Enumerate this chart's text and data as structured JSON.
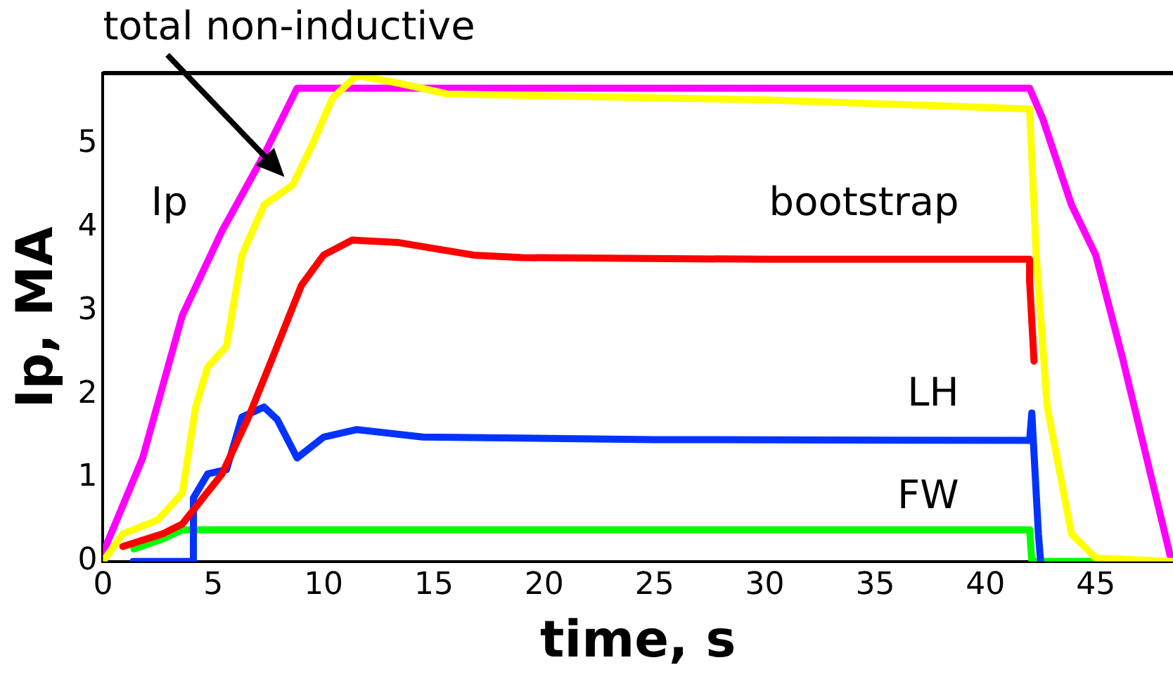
{
  "chart_data": {
    "type": "line",
    "xlabel": "time, s",
    "ylabel": "Ip, MA",
    "xlim": [
      0,
      48.5
    ],
    "ylim": [
      0,
      5.85
    ],
    "xticks": [
      0,
      5,
      10,
      15,
      20,
      25,
      30,
      35,
      40,
      45
    ],
    "yticks": [
      0,
      1,
      2,
      3,
      4,
      5
    ],
    "grid": false,
    "legend": false,
    "marker": "none",
    "line_style": "solid",
    "series": [
      {
        "name": "Ip",
        "color": "#ff00ff",
        "x": [
          0,
          1.8,
          3.6,
          5.4,
          7.3,
          8.8,
          9.3,
          20,
          42.0,
          42.6,
          43.9,
          45.0,
          46.2,
          48.4
        ],
        "values": [
          0.1,
          1.24,
          2.95,
          3.96,
          4.87,
          5.67,
          5.67,
          5.67,
          5.67,
          5.3,
          4.27,
          3.67,
          2.45,
          0.04
        ]
      },
      {
        "name": "bootstrap",
        "color": "#ff0000",
        "x": [
          0.9,
          2.7,
          3.6,
          5.4,
          6.6,
          7.7,
          9.0,
          10.0,
          11.3,
          13.4,
          16.8,
          19.0,
          30,
          42.0,
          42.0,
          42.2
        ],
        "values": [
          0.18,
          0.33,
          0.45,
          1.05,
          1.73,
          2.45,
          3.31,
          3.67,
          3.85,
          3.82,
          3.67,
          3.64,
          3.62,
          3.62,
          3.36,
          2.4
        ]
      },
      {
        "name": "LH",
        "color": "#0033ff",
        "x": [
          1.36,
          4.1,
          4.1,
          4.75,
          5.6,
          6.3,
          7.3,
          7.9,
          8.8,
          10.0,
          11.5,
          14.5,
          25,
          42.0,
          42.1,
          42.4,
          42.5
        ],
        "values": [
          0,
          0,
          0.76,
          1.05,
          1.1,
          1.73,
          1.85,
          1.7,
          1.24,
          1.49,
          1.58,
          1.49,
          1.46,
          1.45,
          1.78,
          0.33,
          0
        ]
      },
      {
        "name": "FW",
        "color": "#00ff00",
        "x": [
          1.4,
          2.7,
          3.6,
          20,
          42.0,
          42.1,
          44.8
        ],
        "values": [
          0.15,
          0.27,
          0.38,
          0.38,
          0.38,
          0,
          0
        ]
      },
      {
        "name": "total non-inductive",
        "color": "#ffff00",
        "x": [
          0,
          0.9,
          2.5,
          3.6,
          4.2,
          4.75,
          5.6,
          6.3,
          7.3,
          8.6,
          9.5,
          10.4,
          11.5,
          13.4,
          15.6,
          30,
          42.0,
          42.3,
          42.8,
          43.9,
          45.0,
          48.5
        ],
        "values": [
          0,
          0.33,
          0.5,
          0.82,
          1.85,
          2.33,
          2.58,
          3.67,
          4.27,
          4.51,
          5.0,
          5.55,
          5.82,
          5.73,
          5.6,
          5.53,
          5.42,
          3.67,
          1.85,
          0.33,
          0.04,
          0
        ]
      }
    ]
  }
}
